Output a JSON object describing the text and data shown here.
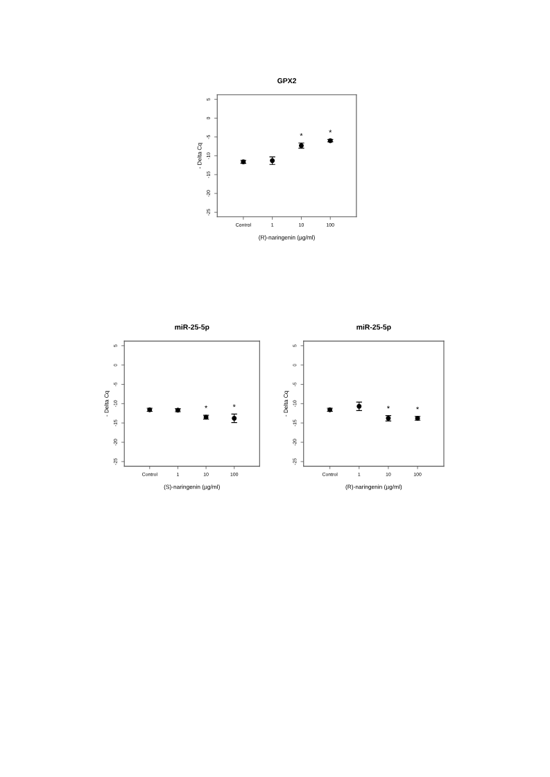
{
  "chart_data": [
    {
      "type": "scatter",
      "title": "GPX2",
      "xlabel": "(R)-naringenin (µg/ml)",
      "ylabel": "- Delta Cq",
      "categories": [
        "Control",
        "1",
        "10",
        "100"
      ],
      "values": [
        -11.6,
        -11.3,
        -7.3,
        -6.0
      ],
      "errors": [
        0.4,
        1.0,
        0.7,
        0.3
      ],
      "color": "#000000",
      "marker": "circle",
      "ylim": [
        -26.2,
        6.2
      ],
      "yticks": [
        -25,
        -20,
        -15,
        -10,
        -5,
        0,
        5
      ],
      "annotations": [
        {
          "text": "*",
          "x": "10",
          "y": -7.3
        },
        {
          "text": "*",
          "x": "100",
          "y": -6.0
        }
      ]
    },
    {
      "type": "scatter",
      "title": "miR-25-5p",
      "xlabel": "(S)-naringenin (µg/ml)",
      "ylabel": "- Delta Cq",
      "categories": [
        "Control",
        "1",
        "10",
        "100"
      ],
      "values": [
        -11.6,
        -11.7,
        -13.5,
        -13.8
      ],
      "errors": [
        0.4,
        0.4,
        0.5,
        1.1
      ],
      "color": "#000000",
      "marker": "circle",
      "ylim": [
        -26.2,
        6.2
      ],
      "yticks": [
        -25,
        -20,
        -15,
        -10,
        -5,
        0,
        5
      ],
      "annotations": [
        {
          "text": "*",
          "x": "10",
          "y": -13.5
        },
        {
          "text": "*",
          "x": "100",
          "y": -13.8
        }
      ]
    },
    {
      "type": "scatter",
      "title": "miR-25-5p",
      "xlabel": "(R)-naringenin (µg/ml)",
      "ylabel": "- Delta Cq",
      "categories": [
        "Control",
        "1",
        "10",
        "100"
      ],
      "values": [
        -11.6,
        -10.7,
        -13.8,
        -13.8
      ],
      "errors": [
        0.4,
        1.1,
        0.7,
        0.5
      ],
      "color": "#000000",
      "marker": "circle",
      "ylim": [
        -26.2,
        6.2
      ],
      "yticks": [
        -25,
        -20,
        -15,
        -10,
        -5,
        0,
        5
      ],
      "annotations": [
        {
          "text": "*",
          "x": "10",
          "y": -13.8
        },
        {
          "text": "*",
          "x": "100",
          "y": -13.8
        }
      ]
    }
  ]
}
